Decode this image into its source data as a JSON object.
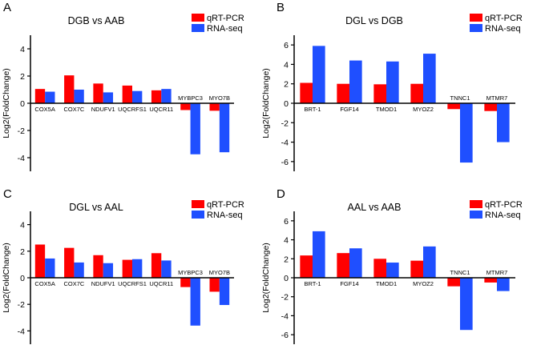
{
  "figure": {
    "colors": {
      "qrt": "#ff0000",
      "rna": "#1f4fff"
    }
  },
  "chart_data": [
    {
      "panel": "A",
      "type": "bar",
      "title": "DGB vs AAB",
      "xlabel": "",
      "ylabel": "Log2(FoldChange)",
      "ylim": [
        -5,
        5
      ],
      "yticks": [
        4,
        2,
        0,
        -2,
        -4
      ],
      "tick_labels": [
        "4",
        "2",
        "0",
        "-2",
        "-4"
      ],
      "categories": [
        "COX5A",
        "COX7C",
        "NDUFV1",
        "UQCRFS1",
        "UQCR11",
        "MYBPC3",
        "MYO7B"
      ],
      "legend": [
        "qRT-PCR",
        "RNA-seq"
      ],
      "series": [
        {
          "name": "qRT-PCR",
          "values": [
            1.05,
            2.05,
            1.45,
            1.3,
            0.95,
            -0.5,
            -0.55
          ]
        },
        {
          "name": "RNA-seq",
          "values": [
            0.85,
            1.0,
            0.8,
            0.9,
            1.05,
            -3.75,
            -3.6
          ]
        }
      ]
    },
    {
      "panel": "B",
      "type": "bar",
      "title": "DGL vs DGB",
      "xlabel": "",
      "ylabel": "Log2(FoldChange)",
      "ylim": [
        -7,
        7
      ],
      "yticks": [
        6,
        4,
        2,
        0,
        -2,
        -4,
        -6
      ],
      "tick_labels": [
        "6",
        "4",
        "2",
        "0",
        "-2",
        "-4",
        "-6"
      ],
      "categories": [
        "BRT-1",
        "FGF14",
        "TMOD1",
        "MYOZ2",
        "TNNC1",
        "MTMR7"
      ],
      "legend": [
        "qRT-PCR",
        "RNA-seq"
      ],
      "series": [
        {
          "name": "qRT-PCR",
          "values": [
            2.1,
            2.0,
            1.95,
            2.0,
            -0.6,
            -0.8
          ]
        },
        {
          "name": "RNA-seq",
          "values": [
            5.9,
            4.4,
            4.3,
            5.1,
            -6.1,
            -4.0
          ]
        }
      ]
    },
    {
      "panel": "C",
      "type": "bar",
      "title": "DGL vs AAL",
      "xlabel": "",
      "ylabel": "Log2(FoldChange)",
      "ylim": [
        -5,
        5
      ],
      "yticks": [
        4,
        2,
        0,
        -2,
        -4
      ],
      "tick_labels": [
        "4",
        "2",
        "0",
        "-2",
        "-4"
      ],
      "categories": [
        "COX5A",
        "COX7C",
        "NDUFV1",
        "UQCRFS1",
        "UQCR11",
        "MYBPC3",
        "MYO7B"
      ],
      "legend": [
        "qRT-PCR",
        "RNA-seq"
      ],
      "series": [
        {
          "name": "qRT-PCR",
          "values": [
            2.5,
            2.25,
            1.7,
            1.35,
            1.85,
            -0.7,
            -1.05
          ]
        },
        {
          "name": "RNA-seq",
          "values": [
            1.45,
            1.15,
            1.1,
            1.4,
            1.3,
            -3.6,
            -2.05
          ]
        }
      ]
    },
    {
      "panel": "D",
      "type": "bar",
      "title": "AAL vs AAB",
      "xlabel": "",
      "ylabel": "Log2(FoldChange)",
      "ylim": [
        -7,
        7
      ],
      "yticks": [
        6,
        4,
        2,
        0,
        -2,
        -4,
        -6
      ],
      "tick_labels": [
        "6",
        "4",
        "2",
        "0",
        "-2",
        "-4",
        "-6"
      ],
      "categories": [
        "BRT-1",
        "FGF14",
        "TMOD1",
        "MYOZ2",
        "TNNC1",
        "MTMR7"
      ],
      "legend": [
        "qRT-PCR",
        "RNA-seq"
      ],
      "series": [
        {
          "name": "qRT-PCR",
          "values": [
            2.35,
            2.6,
            2.0,
            1.8,
            -0.9,
            -0.5
          ]
        },
        {
          "name": "RNA-seq",
          "values": [
            4.9,
            3.1,
            1.6,
            3.3,
            -5.5,
            -1.4
          ]
        }
      ]
    }
  ]
}
